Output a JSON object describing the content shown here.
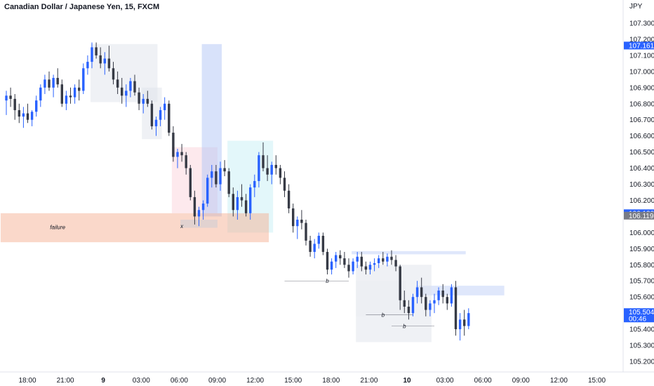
{
  "chart_data": {
    "type": "candlestick",
    "title": "Canadian Dollar / Japanese Yen, 15, FXCM",
    "currency": "JPY",
    "ylim": [
      105.14,
      107.38
    ],
    "y_ticks": [
      "107.300",
      "107.200",
      "107.100",
      "107.000",
      "106.900",
      "106.800",
      "106.700",
      "106.600",
      "106.500",
      "106.400",
      "106.300",
      "106.200",
      "106.100",
      "106.000",
      "105.900",
      "105.800",
      "105.700",
      "105.600",
      "105.500",
      "105.400",
      "105.300",
      "105.200"
    ],
    "x_ticks": [
      {
        "label": "18:00",
        "bold": false
      },
      {
        "label": "21:00",
        "bold": false
      },
      {
        "label": "9",
        "bold": true
      },
      {
        "label": "03:00",
        "bold": false
      },
      {
        "label": "06:00",
        "bold": false
      },
      {
        "label": "09:00",
        "bold": false
      },
      {
        "label": "12:00",
        "bold": false
      },
      {
        "label": "15:00",
        "bold": false
      },
      {
        "label": "18:00",
        "bold": false
      },
      {
        "label": "21:00",
        "bold": false
      },
      {
        "label": "10",
        "bold": true
      },
      {
        "label": "03:00",
        "bold": false
      },
      {
        "label": "06:00",
        "bold": false
      },
      {
        "label": "09:00",
        "bold": false
      },
      {
        "label": "12:00",
        "bold": false
      },
      {
        "label": "15:00",
        "bold": false
      }
    ],
    "price_tags": [
      {
        "label": "107.161",
        "value": 107.161,
        "color": "#2962ff"
      },
      {
        "label": "106.120",
        "value": 106.12,
        "color": "#2962ff"
      },
      {
        "label": "106.119",
        "value": 106.105,
        "color": "#787b86"
      },
      {
        "label": "105.504",
        "sub": "00:46",
        "value": 105.504,
        "color": "#2962ff"
      }
    ],
    "candles_ohlc": [
      [
        106.82,
        106.88,
        106.73,
        106.85
      ],
      [
        106.85,
        106.9,
        106.78,
        106.83
      ],
      [
        106.83,
        106.86,
        106.7,
        106.76
      ],
      [
        106.76,
        106.8,
        106.68,
        106.72
      ],
      [
        106.72,
        106.78,
        106.65,
        106.74
      ],
      [
        106.74,
        106.8,
        106.68,
        106.7
      ],
      [
        106.7,
        106.76,
        106.66,
        106.75
      ],
      [
        106.75,
        106.85,
        106.72,
        106.82
      ],
      [
        106.82,
        106.92,
        106.78,
        106.9
      ],
      [
        106.9,
        106.98,
        106.86,
        106.95
      ],
      [
        106.95,
        107.0,
        106.88,
        106.9
      ],
      [
        106.9,
        106.98,
        106.84,
        106.96
      ],
      [
        106.96,
        107.02,
        106.9,
        106.92
      ],
      [
        106.92,
        106.95,
        106.78,
        106.8
      ],
      [
        106.8,
        106.88,
        106.76,
        106.85
      ],
      [
        106.85,
        106.9,
        106.8,
        106.84
      ],
      [
        106.84,
        106.92,
        106.8,
        106.9
      ],
      [
        106.9,
        106.95,
        106.82,
        106.88
      ],
      [
        106.88,
        107.05,
        106.86,
        107.02
      ],
      [
        107.02,
        107.1,
        106.98,
        107.06
      ],
      [
        107.06,
        107.18,
        107.02,
        107.15
      ],
      [
        107.15,
        107.18,
        107.08,
        107.1
      ],
      [
        107.1,
        107.15,
        107.02,
        107.05
      ],
      [
        107.05,
        107.12,
        106.98,
        107.08
      ],
      [
        107.08,
        107.16,
        107.0,
        107.02
      ],
      [
        107.02,
        107.06,
        106.92,
        106.95
      ],
      [
        106.95,
        107.0,
        106.86,
        106.9
      ],
      [
        106.9,
        106.96,
        106.8,
        106.85
      ],
      [
        106.85,
        106.92,
        106.78,
        106.88
      ],
      [
        106.88,
        106.96,
        106.84,
        106.94
      ],
      [
        106.94,
        106.98,
        106.85,
        106.87
      ],
      [
        106.87,
        106.9,
        106.76,
        106.8
      ],
      [
        106.8,
        106.86,
        106.74,
        106.83
      ],
      [
        106.83,
        106.88,
        106.78,
        106.8
      ],
      [
        106.8,
        106.82,
        106.64,
        106.66
      ],
      [
        106.66,
        106.72,
        106.6,
        106.7
      ],
      [
        106.7,
        106.78,
        106.66,
        106.76
      ],
      [
        106.76,
        106.84,
        106.7,
        106.8
      ],
      [
        106.8,
        106.82,
        106.6,
        106.62
      ],
      [
        106.62,
        106.66,
        106.44,
        106.47
      ],
      [
        106.47,
        106.52,
        106.4,
        106.5
      ],
      [
        106.5,
        106.55,
        106.44,
        106.48
      ],
      [
        106.48,
        106.5,
        106.36,
        106.4
      ],
      [
        106.4,
        106.42,
        106.2,
        106.22
      ],
      [
        106.22,
        106.26,
        106.05,
        106.1
      ],
      [
        106.1,
        106.16,
        106.04,
        106.14
      ],
      [
        106.14,
        106.2,
        106.08,
        106.18
      ],
      [
        106.18,
        106.36,
        106.16,
        106.34
      ],
      [
        106.34,
        106.42,
        106.28,
        106.38
      ],
      [
        106.38,
        106.42,
        106.28,
        106.3
      ],
      [
        106.3,
        106.44,
        106.26,
        106.4
      ],
      [
        106.4,
        106.45,
        106.35,
        106.38
      ],
      [
        106.38,
        106.4,
        106.22,
        106.24
      ],
      [
        106.24,
        106.28,
        106.1,
        106.14
      ],
      [
        106.14,
        106.26,
        106.08,
        106.22
      ],
      [
        106.22,
        106.3,
        106.16,
        106.2
      ],
      [
        106.2,
        106.24,
        106.1,
        106.12
      ],
      [
        106.12,
        106.3,
        106.08,
        106.28
      ],
      [
        106.28,
        106.36,
        106.22,
        106.32
      ],
      [
        106.32,
        106.5,
        106.28,
        106.48
      ],
      [
        106.48,
        106.56,
        106.38,
        106.4
      ],
      [
        106.4,
        106.48,
        106.32,
        106.36
      ],
      [
        106.36,
        106.44,
        106.3,
        106.42
      ],
      [
        106.42,
        106.48,
        106.36,
        106.4
      ],
      [
        106.4,
        106.42,
        106.3,
        106.34
      ],
      [
        106.34,
        106.38,
        106.22,
        106.26
      ],
      [
        106.26,
        106.3,
        106.12,
        106.15
      ],
      [
        106.15,
        106.18,
        106.0,
        106.04
      ],
      [
        106.04,
        106.1,
        105.96,
        106.08
      ],
      [
        106.08,
        106.14,
        106.02,
        106.06
      ],
      [
        106.06,
        106.08,
        105.92,
        105.95
      ],
      [
        105.95,
        105.98,
        105.85,
        105.88
      ],
      [
        105.88,
        105.96,
        105.84,
        105.93
      ],
      [
        105.93,
        106.0,
        105.9,
        105.98
      ],
      [
        105.98,
        106.0,
        105.86,
        105.88
      ],
      [
        105.88,
        105.9,
        105.74,
        105.77
      ],
      [
        105.77,
        105.84,
        105.74,
        105.82
      ],
      [
        105.82,
        105.88,
        105.78,
        105.86
      ],
      [
        105.86,
        105.89,
        105.8,
        105.84
      ],
      [
        105.84,
        105.88,
        105.78,
        105.8
      ],
      [
        105.8,
        105.84,
        105.72,
        105.76
      ],
      [
        105.76,
        105.84,
        105.74,
        105.82
      ],
      [
        105.82,
        105.88,
        105.78,
        105.85
      ],
      [
        105.85,
        105.88,
        105.76,
        105.79
      ],
      [
        105.79,
        105.82,
        105.74,
        105.77
      ],
      [
        105.77,
        105.82,
        105.74,
        105.8
      ],
      [
        105.8,
        105.84,
        105.76,
        105.81
      ],
      [
        105.81,
        105.86,
        105.78,
        105.84
      ],
      [
        105.84,
        105.88,
        105.8,
        105.82
      ],
      [
        105.82,
        105.87,
        105.79,
        105.85
      ],
      [
        105.85,
        105.89,
        105.8,
        105.83
      ],
      [
        105.83,
        105.86,
        105.76,
        105.79
      ],
      [
        105.79,
        105.8,
        105.52,
        105.58
      ],
      [
        105.58,
        105.64,
        105.5,
        105.54
      ],
      [
        105.54,
        105.58,
        105.46,
        105.5
      ],
      [
        105.5,
        105.62,
        105.48,
        105.6
      ],
      [
        105.6,
        105.7,
        105.56,
        105.66
      ],
      [
        105.66,
        105.72,
        105.56,
        105.6
      ],
      [
        105.6,
        105.62,
        105.48,
        105.52
      ],
      [
        105.52,
        105.58,
        105.48,
        105.56
      ],
      [
        105.56,
        105.62,
        105.5,
        105.58
      ],
      [
        105.58,
        105.66,
        105.55,
        105.64
      ],
      [
        105.64,
        105.68,
        105.56,
        105.6
      ],
      [
        105.6,
        105.62,
        105.52,
        105.56
      ],
      [
        105.56,
        105.68,
        105.54,
        105.66
      ],
      [
        105.66,
        105.7,
        105.36,
        105.4
      ],
      [
        105.4,
        105.5,
        105.33,
        105.46
      ],
      [
        105.46,
        105.52,
        105.36,
        105.42
      ],
      [
        105.42,
        105.53,
        105.4,
        105.5
      ]
    ],
    "zones": [
      {
        "color": "#e0e3eb",
        "p_top": 107.17,
        "p_bot": 106.81,
        "i_from": 20,
        "i_to": 35
      },
      {
        "color": "#e0e3eb",
        "p_top": 106.9,
        "p_bot": 106.58,
        "i_from": 32,
        "i_to": 36
      },
      {
        "color": "#fbd3dc",
        "p_top": 106.53,
        "p_bot": 106.12,
        "i_from": 39,
        "i_to": 49
      },
      {
        "color": "#b2c5f5",
        "p_top": 107.17,
        "p_bot": 106.1,
        "i_from": 46,
        "i_to": 50
      },
      {
        "color": "#c8f0f5",
        "p_top": 106.57,
        "p_bot": 106.0,
        "i_from": 52,
        "i_to": 62
      },
      {
        "color": "#f4a98a",
        "p_top": 106.12,
        "p_bot": 105.94,
        "i_from": -1,
        "i_to": 61
      },
      {
        "color": "#c8ccd6",
        "p_top": 106.08,
        "p_bot": 106.03,
        "i_from": 41,
        "i_to": 49
      },
      {
        "color": "#bfd0f7",
        "p_top": 105.885,
        "p_bot": 105.865,
        "i_from": 81,
        "i_to": 107
      },
      {
        "color": "#bfd0f7",
        "p_top": 105.67,
        "p_bot": 105.61,
        "i_from": 96,
        "i_to": 116
      },
      {
        "color": "#e0e3eb",
        "p_top": 105.8,
        "p_bot": 105.32,
        "i_from": 82,
        "i_to": 99
      },
      {
        "color": "#eceef2",
        "p_top": 105.7,
        "p_bot": 105.48,
        "i_from": 82,
        "i_to": 93
      }
    ],
    "annotations": [
      {
        "text": "failure",
        "price": 106.035,
        "index": 12
      },
      {
        "text": "x",
        "price": 106.04,
        "index": 41
      },
      {
        "text": "b",
        "price": 105.7,
        "index": 75
      },
      {
        "text": "b",
        "price": 105.49,
        "index": 88
      },
      {
        "text": "b",
        "price": 105.42,
        "index": 93
      }
    ],
    "colors": {
      "up": "#2962ff",
      "down": "#363a45"
    }
  }
}
